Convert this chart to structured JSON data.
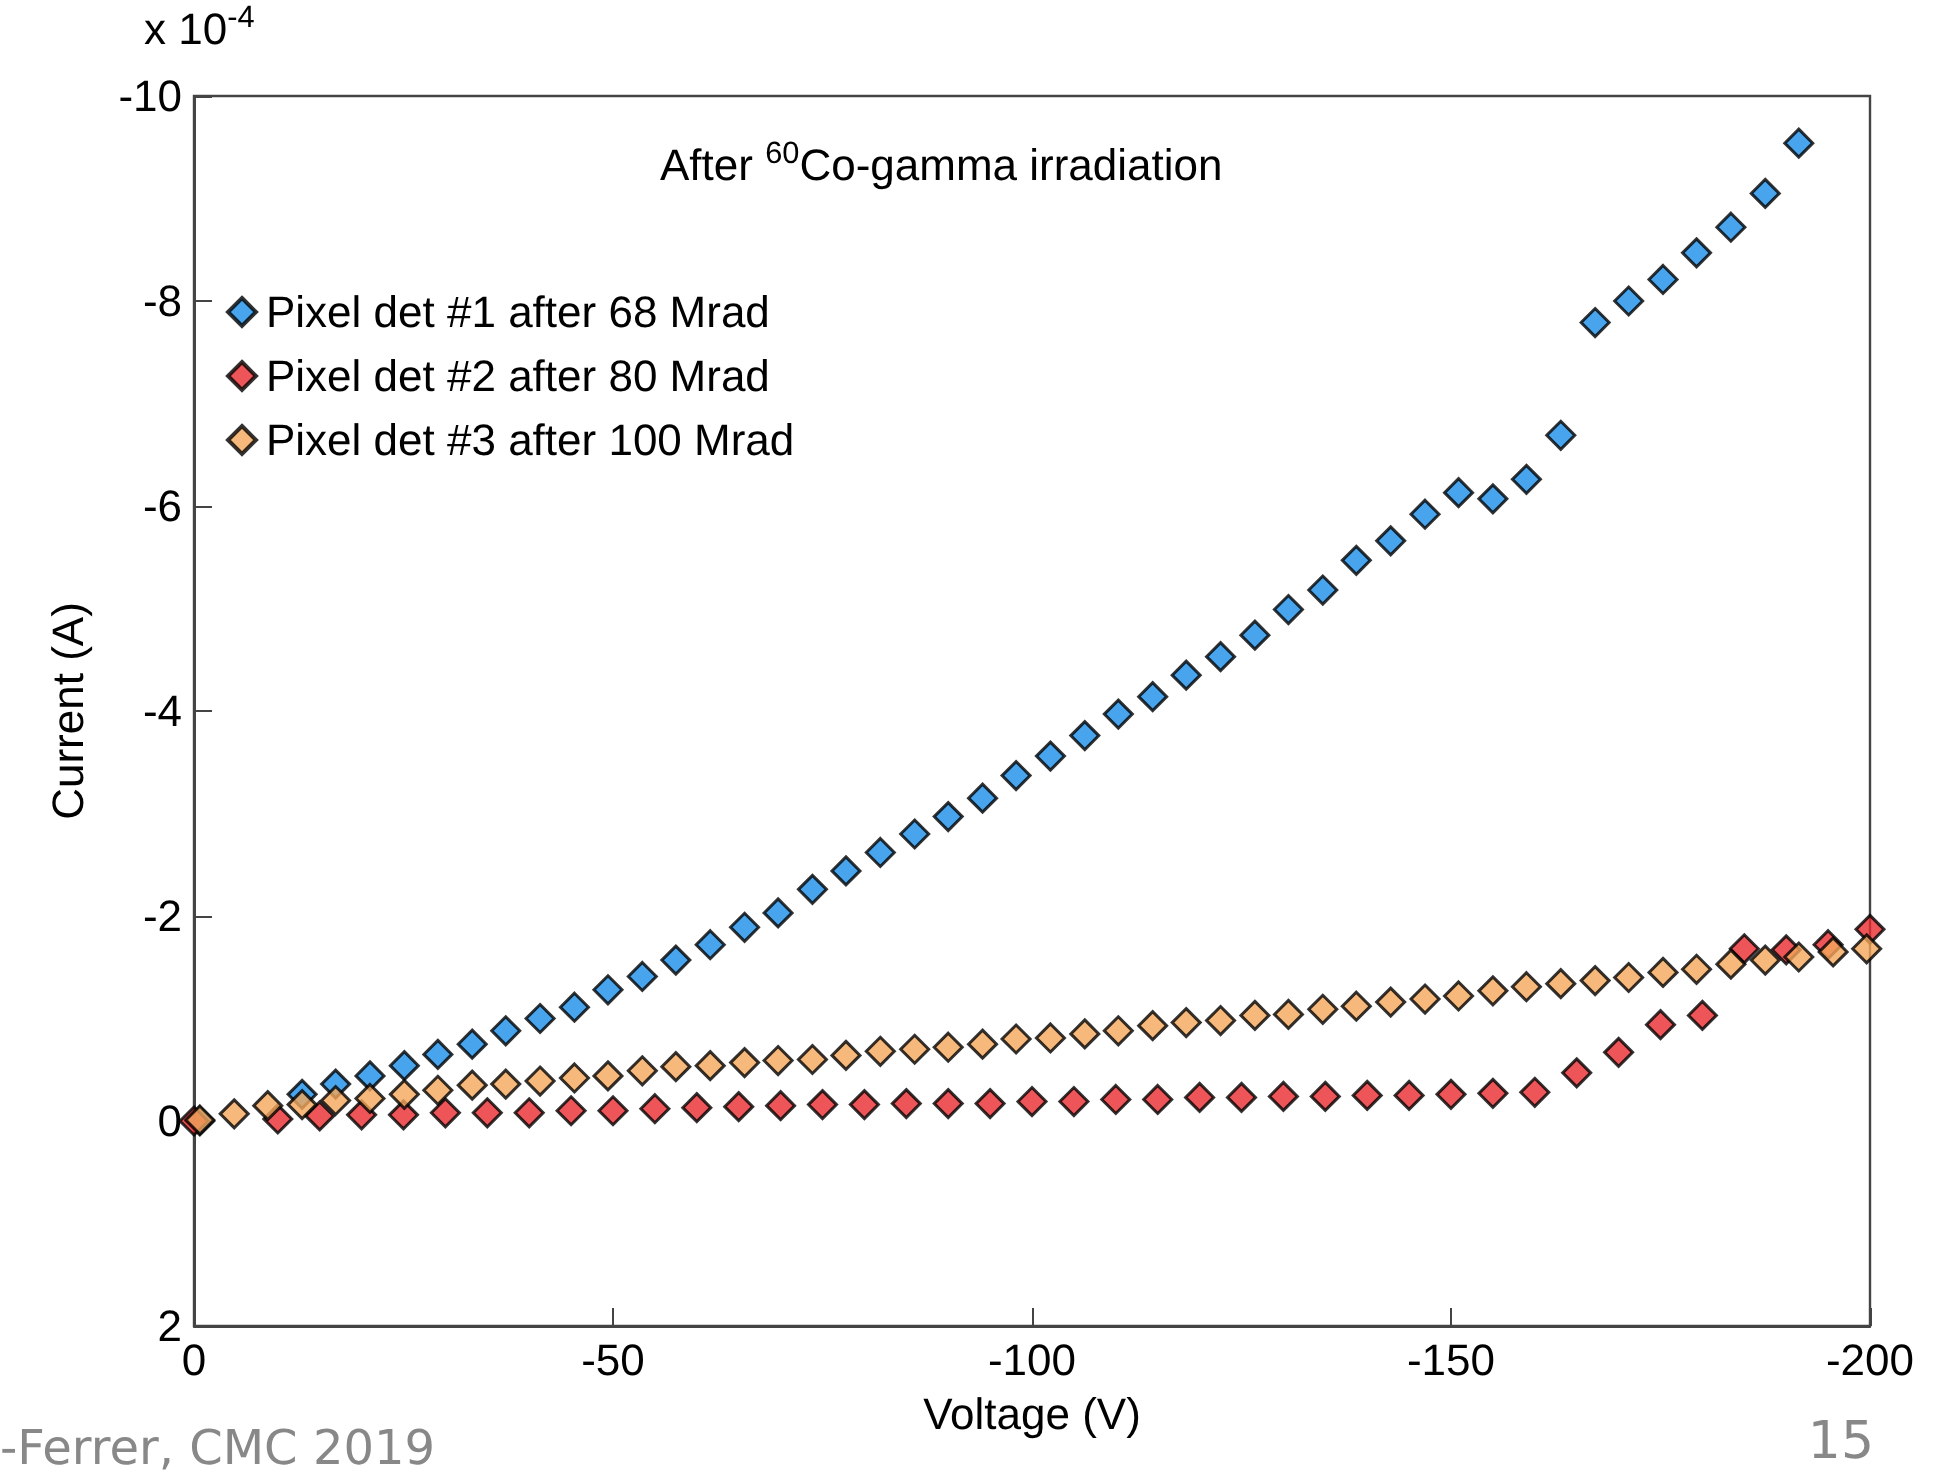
{
  "chart_data": {
    "type": "scatter",
    "title": "After $^{60}$Co-gamma irradiation",
    "xlabel": "Voltage (V)",
    "ylabel": "Current (A)",
    "annotations": [
      "x 10$^{-4}$",
      "-Ferrer, CMC 2019",
      "15"
    ],
    "marker": "diamond",
    "grid": false,
    "legend": "top left",
    "xlim": [
      0,
      -200
    ],
    "xticks": [
      0,
      -50,
      -100,
      -150,
      -200
    ],
    "ylim": [
      2,
      -10
    ],
    "yticks": [
      -10,
      -8,
      -6,
      -4,
      -2,
      0,
      2
    ],
    "series": [
      {
        "name": "Pixel det #1 after 68 Mrad",
        "color": "#1a8fe8",
        "x": [
          -0.7,
          -12.9,
          -16.9,
          -21.0,
          -25.1,
          -29.1,
          -33.2,
          -37.2,
          -41.3,
          -45.4,
          -49.4,
          -53.5,
          -57.5,
          -61.6,
          -65.7,
          -69.7,
          -73.8,
          -77.8,
          -81.9,
          -86.0,
          -90.0,
          -94.1,
          -98.1,
          -102.2,
          -106.3,
          -110.3,
          -114.4,
          -118.4,
          -122.5,
          -126.6,
          -130.6,
          -134.7,
          -138.7,
          -142.8,
          -146.9,
          -150.9,
          -155.0,
          -159.0,
          -163.1,
          -167.2,
          -171.2,
          -175.3,
          -179.3,
          -183.4,
          -187.5,
          -191.5
        ],
        "values": [
          0,
          -0.26,
          -0.36,
          -0.44,
          -0.54,
          -0.65,
          -0.75,
          -0.88,
          -1.0,
          -1.11,
          -1.28,
          -1.41,
          -1.57,
          -1.72,
          -1.89,
          -2.03,
          -2.26,
          -2.44,
          -2.62,
          -2.8,
          -2.97,
          -3.15,
          -3.37,
          -3.56,
          -3.76,
          -3.97,
          -4.14,
          -4.35,
          -4.53,
          -4.74,
          -4.99,
          -5.18,
          -5.47,
          -5.66,
          -5.92,
          -6.13,
          -6.07,
          -6.26,
          -6.69,
          -7.79,
          -8.0,
          -8.21,
          -8.47,
          -8.72,
          -9.05,
          -9.54
        ]
      },
      {
        "name": "Pixel det #2 after 80 Mrad",
        "color": "#ea2a30",
        "x": [
          0,
          -10,
          -15,
          -20,
          -25,
          -30,
          -35,
          -40,
          -45,
          -50,
          -55,
          -60,
          -65,
          -70,
          -75,
          -80,
          -85,
          -90,
          -95,
          -100,
          -105,
          -110,
          -115,
          -120,
          -125,
          -130,
          -135,
          -140,
          -145,
          -150,
          -155,
          -160,
          -165,
          -170,
          -175,
          -180,
          -185,
          -190,
          -195,
          -200
        ],
        "values": [
          0,
          -0.02,
          -0.05,
          -0.06,
          -0.06,
          -0.08,
          -0.08,
          -0.08,
          -0.1,
          -0.1,
          -0.12,
          -0.13,
          -0.14,
          -0.15,
          -0.16,
          -0.16,
          -0.17,
          -0.17,
          -0.17,
          -0.19,
          -0.19,
          -0.21,
          -0.21,
          -0.23,
          -0.23,
          -0.24,
          -0.24,
          -0.25,
          -0.25,
          -0.26,
          -0.27,
          -0.28,
          -0.47,
          -0.67,
          -0.94,
          -1.03,
          -1.68,
          -1.67,
          -1.72,
          -1.87
        ]
      },
      {
        "name": "Pixel det #3 after 100 Mrad",
        "color": "#f5a85a",
        "x": [
          -0.7,
          -4.8,
          -8.8,
          -12.9,
          -16.9,
          -21.0,
          -25.1,
          -29.1,
          -33.2,
          -37.2,
          -41.3,
          -45.4,
          -49.4,
          -53.5,
          -57.5,
          -61.6,
          -65.7,
          -69.7,
          -73.8,
          -77.8,
          -81.9,
          -86.0,
          -90.0,
          -94.1,
          -98.1,
          -102.2,
          -106.3,
          -110.3,
          -114.4,
          -118.4,
          -122.5,
          -126.6,
          -130.6,
          -134.7,
          -138.7,
          -142.8,
          -146.9,
          -150.9,
          -155.0,
          -159.0,
          -163.1,
          -167.2,
          -171.2,
          -175.3,
          -179.3,
          -183.4,
          -187.5,
          -191.5,
          -195.6,
          -199.6
        ],
        "values": [
          -0.01,
          -0.07,
          -0.15,
          -0.16,
          -0.2,
          -0.22,
          -0.26,
          -0.3,
          -0.35,
          -0.36,
          -0.39,
          -0.42,
          -0.44,
          -0.49,
          -0.53,
          -0.54,
          -0.57,
          -0.59,
          -0.6,
          -0.64,
          -0.68,
          -0.7,
          -0.72,
          -0.75,
          -0.8,
          -0.81,
          -0.85,
          -0.88,
          -0.93,
          -0.96,
          -0.98,
          -1.03,
          -1.04,
          -1.09,
          -1.12,
          -1.16,
          -1.19,
          -1.22,
          -1.27,
          -1.31,
          -1.34,
          -1.37,
          -1.4,
          -1.45,
          -1.48,
          -1.53,
          -1.57,
          -1.6,
          -1.65,
          -1.68
        ]
      }
    ]
  }
}
